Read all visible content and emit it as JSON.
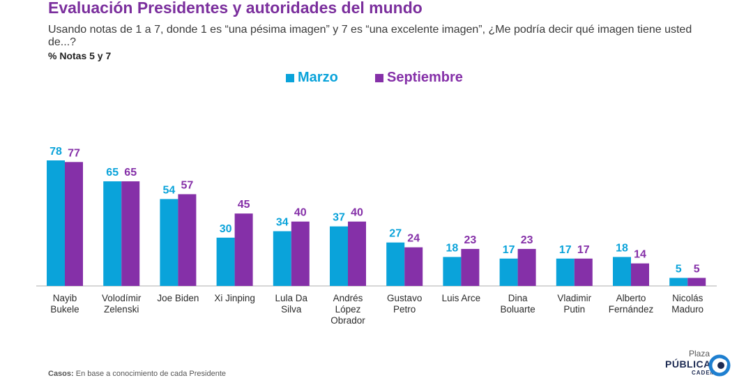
{
  "title": "Evaluación Presidentes y autoridades del mundo",
  "subtitle": "Usando notas de 1 a 7, donde 1 es “una pésima imagen” y 7 es “una excelente imagen”, ¿Me podría decir qué imagen tiene usted de...?",
  "metric_label": "% Notas 5 y 7",
  "footnote": {
    "label": "Casos:",
    "text": " En base a conocimiento de cada Presidente"
  },
  "logo": {
    "line1": "Plaza",
    "line2": "PÚBLICA",
    "line3": "CADEM"
  },
  "colors": {
    "marzo": "#0aa3da",
    "septiembre": "#8530a8",
    "axis": "#bdbdbd"
  },
  "chart_data": {
    "type": "bar",
    "title": "Evaluación Presidentes y autoridades del mundo",
    "xlabel": "",
    "ylabel": "",
    "ylim": [
      0,
      85
    ],
    "grid": false,
    "legend_position": "top-center",
    "categories": [
      [
        "Nayib",
        "Bukele"
      ],
      [
        "Volodímir",
        "Zelenski"
      ],
      [
        "Joe Biden"
      ],
      [
        "Xi Jinping"
      ],
      [
        "Lula Da",
        "Silva"
      ],
      [
        "Andrés",
        "López",
        "Obrador"
      ],
      [
        "Gustavo",
        "Petro"
      ],
      [
        "Luis Arce"
      ],
      [
        "Dina",
        "Boluarte"
      ],
      [
        "Vladimir",
        "Putin"
      ],
      [
        "Alberto",
        "Fernández"
      ],
      [
        "Nicolás",
        "Maduro"
      ]
    ],
    "series": [
      {
        "name": "Marzo",
        "values": [
          78,
          65,
          54,
          30,
          34,
          37,
          27,
          18,
          17,
          17,
          18,
          5
        ]
      },
      {
        "name": "Septiembre",
        "values": [
          77,
          65,
          57,
          45,
          40,
          40,
          24,
          23,
          23,
          17,
          14,
          5
        ]
      }
    ]
  }
}
